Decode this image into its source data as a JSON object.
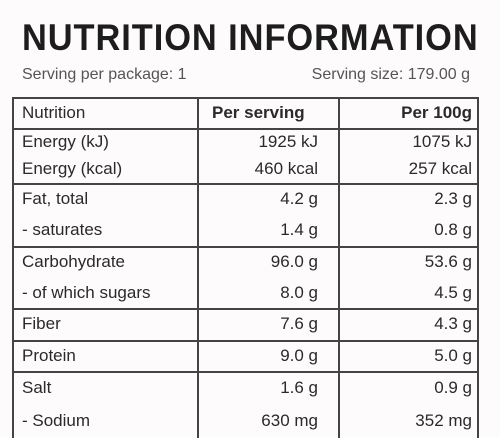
{
  "header": {
    "title": "NUTRITION INFORMATION"
  },
  "serving": {
    "per_package": "Serving per package: 1",
    "size": "Serving size: 179.00 g"
  },
  "table": {
    "columns": [
      "Nutrition",
      "Per serving",
      "Per 100g"
    ],
    "groups": [
      [
        [
          "Energy (kJ)",
          "1925 kJ",
          "1075 kJ"
        ],
        [
          "Energy (kcal)",
          "460 kcal",
          "257 kcal"
        ]
      ],
      [
        [
          "Fat, total",
          "4.2 g",
          "2.3 g"
        ],
        [
          " - saturates",
          "1.4 g",
          "0.8 g"
        ]
      ],
      [
        [
          "Carbohydrate",
          "96.0 g",
          "53.6 g"
        ],
        [
          " - of which sugars",
          "8.0 g",
          "4.5 g"
        ]
      ],
      [
        [
          "Fiber",
          "7.6 g",
          "4.3 g"
        ]
      ],
      [
        [
          "Protein",
          "9.0 g",
          "5.0 g"
        ]
      ],
      [
        [
          "Salt",
          "1.6 g",
          "0.9 g"
        ],
        [
          " - Sodium",
          "630 mg",
          "352 mg"
        ]
      ]
    ]
  }
}
